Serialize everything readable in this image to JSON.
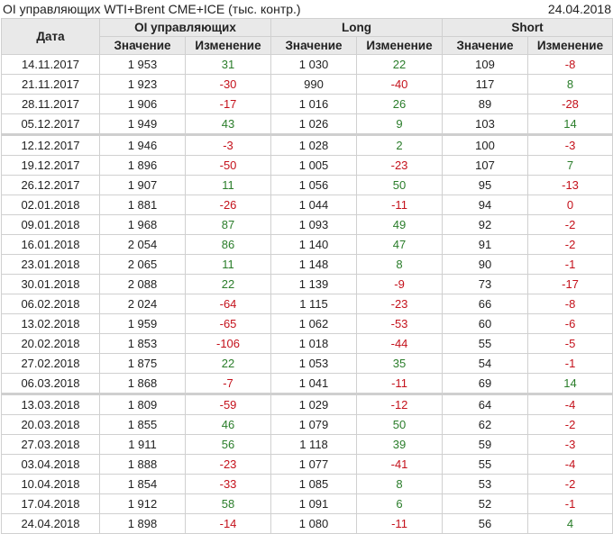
{
  "title": "OI управляющих WTI+Brent CME+ICE (тыс. контр.)",
  "date": "24.04.2018",
  "headers": {
    "date": "Дата",
    "oi": "OI управляющих",
    "long": "Long",
    "short": "Short",
    "value": "Значение",
    "change": "Изменение"
  },
  "colors": {
    "positive": "#2a7d2a",
    "negative": "#c4111b"
  },
  "separator_after": [
    "05.12.2017",
    "06.03.2018"
  ],
  "rows": [
    [
      "14.11.2017",
      "1 953",
      "31",
      "1 030",
      "22",
      "109",
      "-8"
    ],
    [
      "21.11.2017",
      "1 923",
      "-30",
      "990",
      "-40",
      "117",
      "8"
    ],
    [
      "28.11.2017",
      "1 906",
      "-17",
      "1 016",
      "26",
      "89",
      "-28"
    ],
    [
      "05.12.2017",
      "1 949",
      "43",
      "1 026",
      "9",
      "103",
      "14"
    ],
    [
      "12.12.2017",
      "1 946",
      "-3",
      "1 028",
      "2",
      "100",
      "-3"
    ],
    [
      "19.12.2017",
      "1 896",
      "-50",
      "1 005",
      "-23",
      "107",
      "7"
    ],
    [
      "26.12.2017",
      "1 907",
      "11",
      "1 056",
      "50",
      "95",
      "-13"
    ],
    [
      "02.01.2018",
      "1 881",
      "-26",
      "1 044",
      "-11",
      "94",
      "0"
    ],
    [
      "09.01.2018",
      "1 968",
      "87",
      "1 093",
      "49",
      "92",
      "-2"
    ],
    [
      "16.01.2018",
      "2 054",
      "86",
      "1 140",
      "47",
      "91",
      "-2"
    ],
    [
      "23.01.2018",
      "2 065",
      "11",
      "1 148",
      "8",
      "90",
      "-1"
    ],
    [
      "30.01.2018",
      "2 088",
      "22",
      "1 139",
      "-9",
      "73",
      "-17"
    ],
    [
      "06.02.2018",
      "2 024",
      "-64",
      "1 115",
      "-23",
      "66",
      "-8"
    ],
    [
      "13.02.2018",
      "1 959",
      "-65",
      "1 062",
      "-53",
      "60",
      "-6"
    ],
    [
      "20.02.2018",
      "1 853",
      "-106",
      "1 018",
      "-44",
      "55",
      "-5"
    ],
    [
      "27.02.2018",
      "1 875",
      "22",
      "1 053",
      "35",
      "54",
      "-1"
    ],
    [
      "06.03.2018",
      "1 868",
      "-7",
      "1 041",
      "-11",
      "69",
      "14"
    ],
    [
      "13.03.2018",
      "1 809",
      "-59",
      "1 029",
      "-12",
      "64",
      "-4"
    ],
    [
      "20.03.2018",
      "1 855",
      "46",
      "1 079",
      "50",
      "62",
      "-2"
    ],
    [
      "27.03.2018",
      "1 911",
      "56",
      "1 118",
      "39",
      "59",
      "-3"
    ],
    [
      "03.04.2018",
      "1 888",
      "-23",
      "1 077",
      "-41",
      "55",
      "-4"
    ],
    [
      "10.04.2018",
      "1 854",
      "-33",
      "1 085",
      "8",
      "53",
      "-2"
    ],
    [
      "17.04.2018",
      "1 912",
      "58",
      "1 091",
      "6",
      "52",
      "-1"
    ],
    [
      "24.04.2018",
      "1 898",
      "-14",
      "1 080",
      "-11",
      "56",
      "4"
    ]
  ]
}
